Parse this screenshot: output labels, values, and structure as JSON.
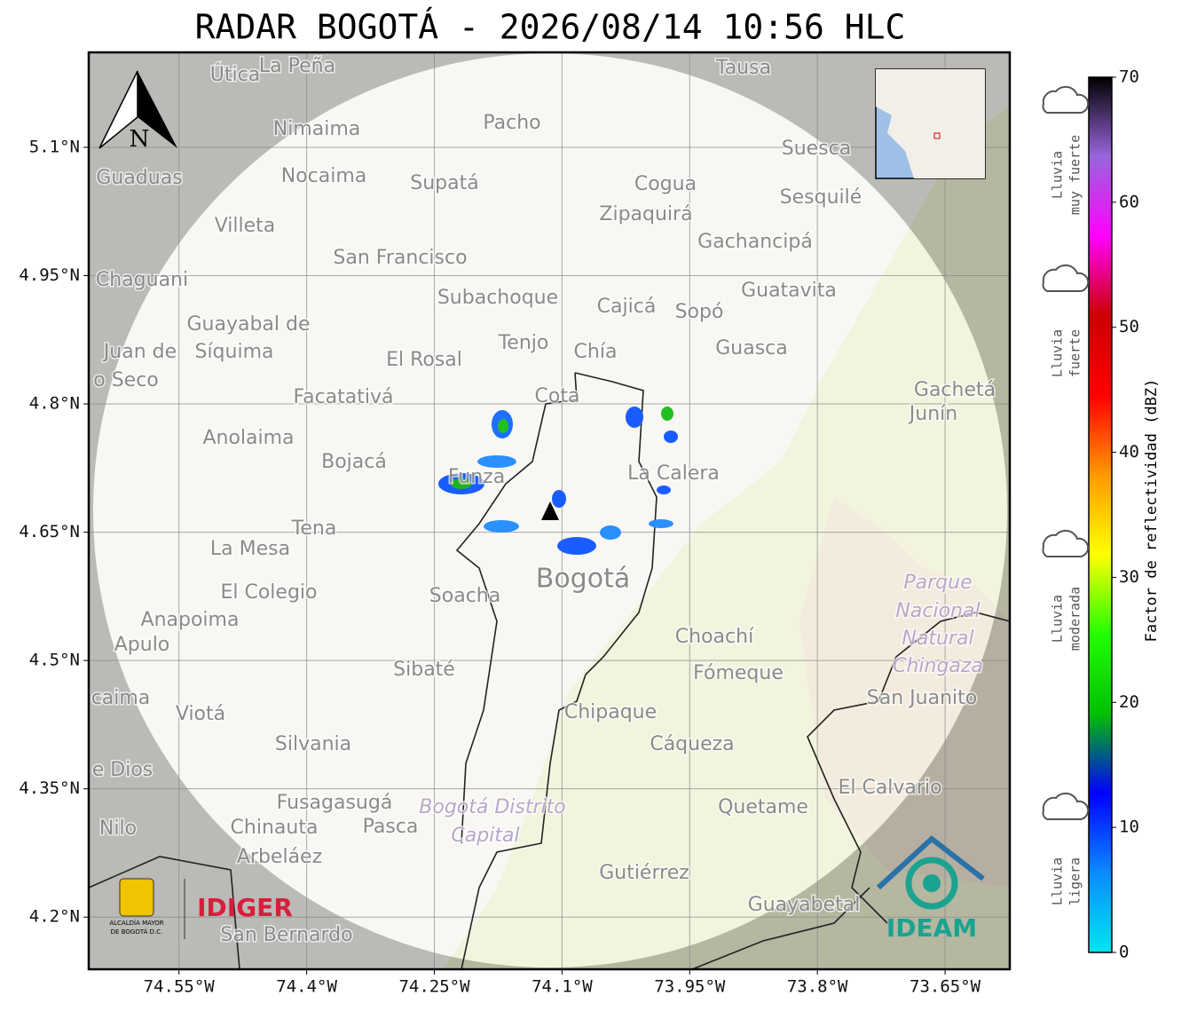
{
  "title": "RADAR BOGOTÁ - 2026/08/14 10:56 HLC",
  "map": {
    "xlim": [
      -74.656,
      -73.574
    ],
    "ylim": [
      4.139,
      5.211
    ],
    "grid": true,
    "xticks": [
      {
        "value": -74.55,
        "label": "74.55°W"
      },
      {
        "value": -74.4,
        "label": "74.4°W"
      },
      {
        "value": -74.25,
        "label": "74.25°W"
      },
      {
        "value": -74.1,
        "label": "74.1°W"
      },
      {
        "value": -73.95,
        "label": "73.95°W"
      },
      {
        "value": -73.8,
        "label": "73.8°W"
      },
      {
        "value": -73.65,
        "label": "73.65°W"
      }
    ],
    "yticks": [
      {
        "value": 5.1,
        "label": "5.1°N"
      },
      {
        "value": 4.95,
        "label": "4.95°N"
      },
      {
        "value": 4.8,
        "label": "4.8°N"
      },
      {
        "value": 4.65,
        "label": "4.65°N"
      },
      {
        "value": 4.5,
        "label": "4.5°N"
      },
      {
        "value": 4.35,
        "label": "4.35°N"
      },
      {
        "value": 4.2,
        "label": "4.2°N"
      }
    ],
    "north_label": "N",
    "places": [
      "Útica",
      "La Peña",
      "Tausa",
      "Nimaima",
      "Pacho",
      "Suesca",
      "Guaduas",
      "Nocaima",
      "Supatá",
      "Cogua",
      "Sesquilé",
      "Zipaquirá",
      "Villeta",
      "Gachancipá",
      "San Francisco",
      "Chaguani",
      "Guatavita",
      "Subachoque",
      "Cajicá",
      "Sopó",
      "Guayabal de",
      "Síquima",
      "Tenjo",
      "Chía",
      "Guasca",
      "Juan de",
      "o Seco",
      "El Rosal",
      "Cota",
      "Gachetá",
      "Junín",
      "Facatativá",
      "Anolaima",
      "Bojacá",
      "Funza",
      "La Calera",
      "Tena",
      "La Mesa",
      "El Colegio",
      "Soacha",
      "Bogotá",
      "Parque",
      "Nacional",
      "Natural",
      "Chingaza",
      "San Juanito",
      "Anapoima",
      "Apulo",
      "Choachí",
      "Fómeque",
      "Sibaté",
      "caima",
      "Viotá",
      "Chipaque",
      "Silvania",
      "Cáqueza",
      "e Dios",
      "El Calvario",
      "Fusagasugá",
      "Bogotá Distrito",
      "Quetame",
      "Nilo",
      "Chinauta",
      "Pasca",
      "Capital",
      "Arbeláez",
      "Gutiérrez",
      "Guayabetal",
      "San Bernardo"
    ]
  },
  "colorbar": {
    "label": "Factor de reflectividad (dBZ)",
    "range": [
      0,
      70
    ],
    "ticks": [
      0,
      10,
      20,
      30,
      40,
      50,
      60,
      70
    ],
    "colors": [
      "#00e5f0",
      "#0a8cff",
      "#0000ff",
      "#00c000",
      "#22ff00",
      "#ffff00",
      "#ff9900",
      "#ff0000",
      "#cc0000",
      "#ff00ff",
      "#9966dd",
      "#000000"
    ],
    "classes": [
      [
        "Lluvia",
        "muy fuerte"
      ],
      [
        "Lluvia",
        "fuerte"
      ],
      [
        "Lluvia",
        "moderada"
      ],
      [
        "Lluvia",
        "ligera"
      ]
    ]
  },
  "logos": {
    "alcaldia": [
      "ALCALDÍA MAYOR",
      "DE BOGOTÁ D.C."
    ],
    "idiger": "IDIGER",
    "ideam": "IDEAM"
  }
}
